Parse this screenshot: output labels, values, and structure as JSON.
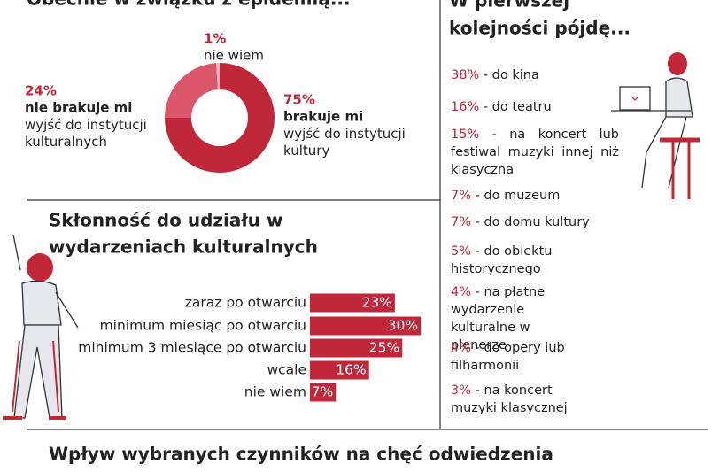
{
  "chart_data": [
    {
      "type": "pie",
      "title": "Obecnie w związku z epidemią...",
      "categories": [
        "brakuje mi",
        "nie brakuje mi",
        "nie wiem"
      ],
      "descriptions": [
        "wyjść do instytucji kultury",
        "wyjść do instytucji kulturalnych",
        ""
      ],
      "values": [
        75,
        24,
        1
      ],
      "value_labels": [
        "75%",
        "24%",
        "1%"
      ],
      "colors": [
        "#c0283a",
        "#d9566b",
        "#f0b8c2"
      ]
    },
    {
      "type": "bar",
      "orientation": "horizontal",
      "title": "Skłonność do udziału w wydarzeniach kulturalnych",
      "categories": [
        "zaraz po otwarciu",
        "minimum miesiąc po otwarciu",
        "minimum 3 miesiące po otwarciu",
        "wcale",
        "nie wiem"
      ],
      "values": [
        23,
        30,
        25,
        16,
        7
      ],
      "value_labels": [
        "23%",
        "30%",
        "25%",
        "16%",
        "7%"
      ],
      "color": "#c0283a"
    }
  ],
  "right_panel": {
    "title": "W pierwszej kolejności pójdę...",
    "items": [
      {
        "percent": "38%",
        "text": "- do kina"
      },
      {
        "percent": "16%",
        "text": "- do teatru"
      },
      {
        "percent": "15%",
        "text": "- na koncert lub festiwal muzyki innej niż klasyczna"
      },
      {
        "percent": "7%",
        "text": "- do muzeum"
      },
      {
        "percent": "7%",
        "text": "- do domu kultury"
      },
      {
        "percent": "5%",
        "text": "- do obiektu historycznego"
      },
      {
        "percent": "4%",
        "text": "- na płatne wydarzenie kulturalne w plenerze"
      },
      {
        "percent": "4%",
        "text": "- do opery lub filharmonii"
      },
      {
        "percent": "3%",
        "text": "- na koncert muzyki klasycznej"
      }
    ]
  },
  "footer": {
    "title": "Wpływ wybranych czynników na chęć odwiedzenia"
  }
}
